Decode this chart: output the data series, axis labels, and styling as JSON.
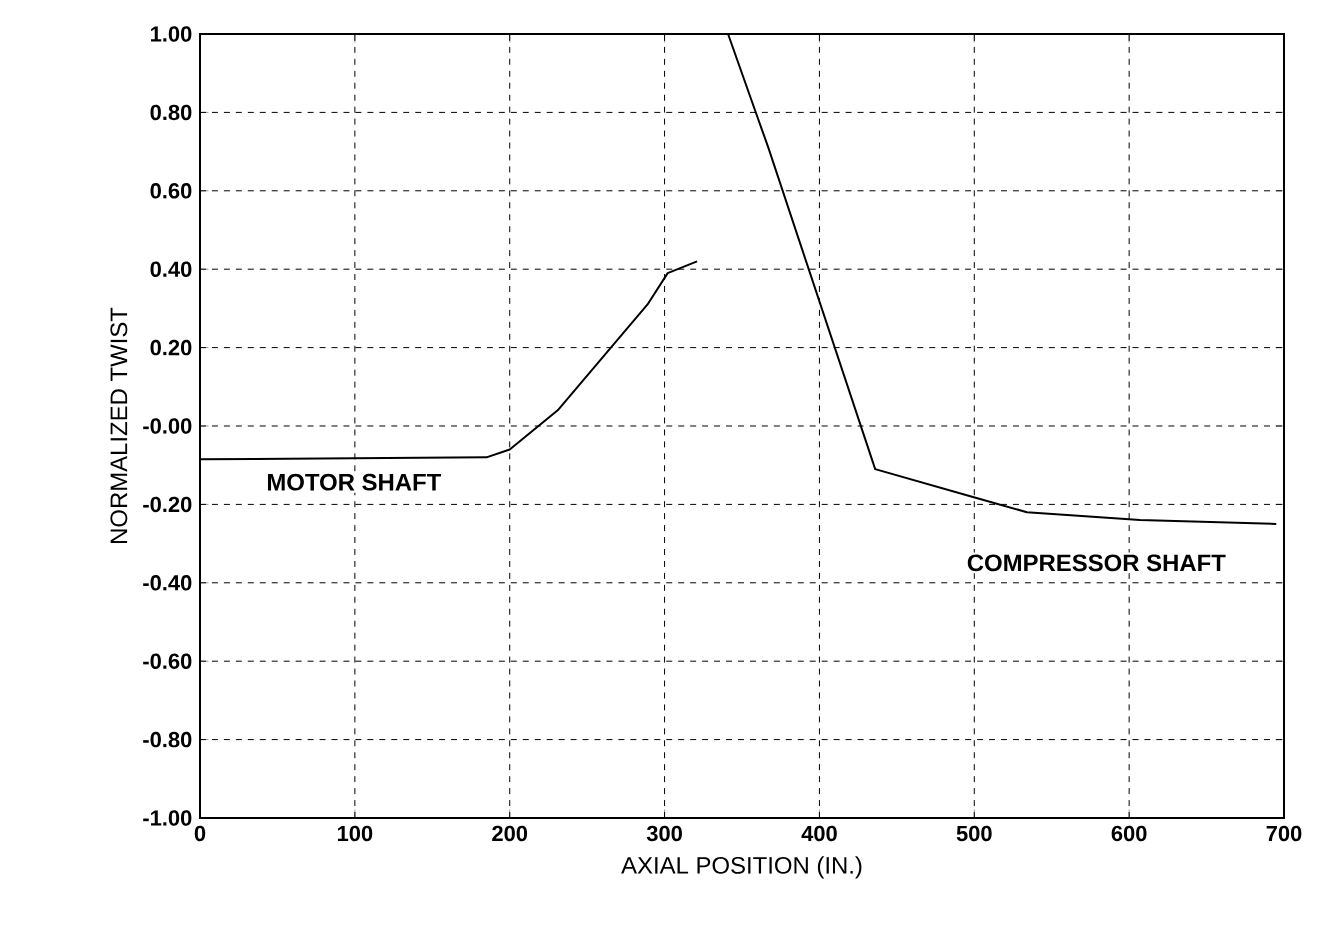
{
  "chart_data": {
    "type": "line",
    "xlabel": "AXIAL POSITION (IN.)",
    "ylabel": "NORMALIZED TWIST",
    "xlim": [
      0,
      700
    ],
    "ylim": [
      -1,
      1
    ],
    "xticks": [
      0,
      100,
      200,
      300,
      400,
      500,
      600,
      700
    ],
    "yticks": [
      {
        "value": 1,
        "label": "1.00"
      },
      {
        "value": 0.8,
        "label": "0.80"
      },
      {
        "value": 0.6,
        "label": "0.60"
      },
      {
        "value": 0.4,
        "label": "0.40"
      },
      {
        "value": 0.2,
        "label": "0.20"
      },
      {
        "value": 0,
        "label": "-0.00"
      },
      {
        "value": -0.2,
        "label": "-0.20"
      },
      {
        "value": -0.4,
        "label": "-0.40"
      },
      {
        "value": -0.6,
        "label": "-0.60"
      },
      {
        "value": -0.8,
        "label": "-0.80"
      },
      {
        "value": -1,
        "label": "-1.00"
      }
    ],
    "grid": true,
    "marker": "none",
    "line_style": "solid",
    "series": [
      {
        "name": "MOTOR SHAFT",
        "color": "#000000",
        "x": [
          0,
          185,
          200,
          231,
          289,
          302,
          321
        ],
        "values": [
          -0.085,
          -0.08,
          -0.06,
          0.04,
          0.31,
          0.39,
          0.42
        ]
      },
      {
        "name": "COMPRESSOR SHAFT",
        "color": "#000000",
        "x": [
          322,
          341,
          358,
          367,
          436,
          498,
          534,
          607,
          695
        ],
        "values": [
          1.0,
          1.0,
          0.81,
          0.71,
          -0.11,
          -0.18,
          -0.22,
          -0.24,
          -0.25
        ]
      }
    ]
  }
}
